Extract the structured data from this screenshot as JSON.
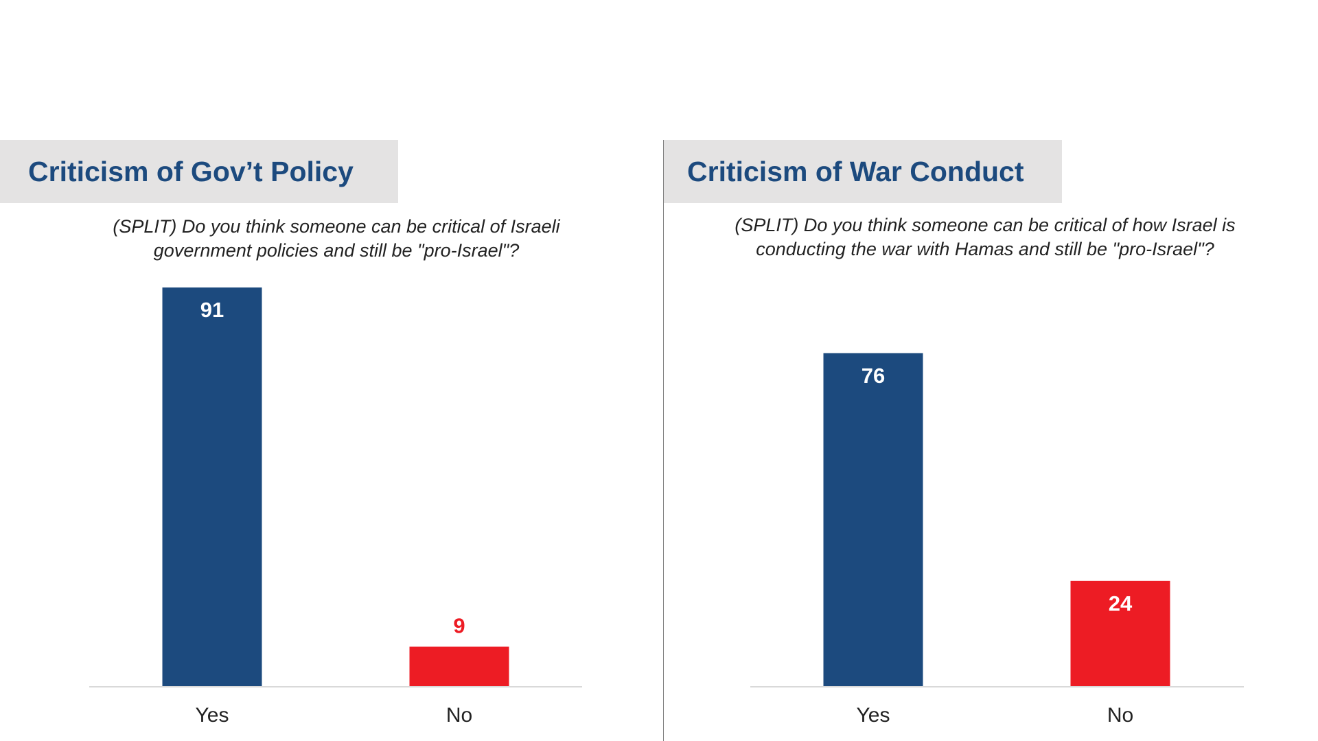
{
  "colors": {
    "yes": "#1c4a7e",
    "no": "#ed1c24",
    "axis": "#d9d9d9",
    "label_inside": "#ffffff"
  },
  "panels": [
    {
      "title": "Criticism of Gov’t Policy",
      "question_line1": "(SPLIT) Do you think someone can be critical of Israeli",
      "question_line2": "government policies and still be \"pro-Israel\"?"
    },
    {
      "title": "Criticism of War Conduct",
      "question_line1": "(SPLIT) Do you think someone can be critical of how Israel is",
      "question_line2": "conducting the war with Hamas and still be \"pro-Israel\"?"
    }
  ],
  "chart_data": [
    {
      "type": "bar",
      "title": "Criticism of Gov’t Policy",
      "categories": [
        "Yes",
        "No"
      ],
      "values": [
        91,
        9
      ],
      "value_labels": [
        "91",
        "9"
      ],
      "ylim": [
        0,
        91
      ],
      "grid": false,
      "legend": "none"
    },
    {
      "type": "bar",
      "title": "Criticism of War Conduct",
      "categories": [
        "Yes",
        "No"
      ],
      "values": [
        76,
        24
      ],
      "value_labels": [
        "76",
        "24"
      ],
      "ylim": [
        0,
        91
      ],
      "grid": false,
      "legend": "none"
    }
  ]
}
